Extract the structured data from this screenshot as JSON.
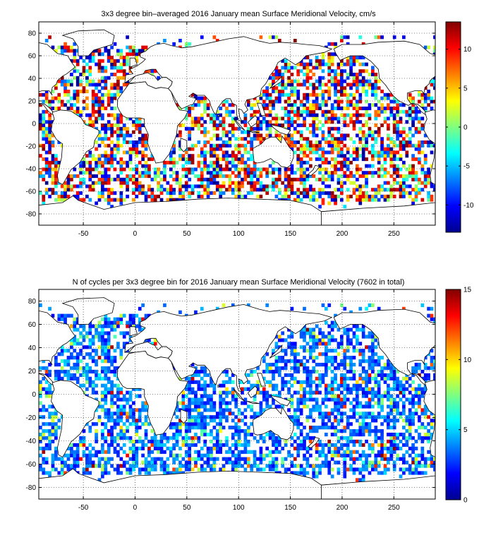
{
  "chart_data": [
    {
      "type": "heatmap",
      "title": "3x3 degree bin–averaged 2016 January mean Surface Meridional Velocity, cm/s",
      "xlabel": "",
      "ylabel": "",
      "xlim": [
        -93,
        290
      ],
      "ylim": [
        -90,
        90
      ],
      "x_ticks": [
        -50,
        0,
        50,
        100,
        150,
        200,
        250
      ],
      "y_ticks": [
        80,
        60,
        40,
        20,
        0,
        -20,
        -40,
        -60,
        -80
      ],
      "grid": "dotted",
      "bin_size_deg": 3,
      "colorbar": {
        "range": [
          -13.5,
          13.5
        ],
        "ticks": [
          10,
          5,
          0,
          -5,
          -10
        ],
        "colormap": "jet"
      }
    },
    {
      "type": "heatmap",
      "title": "N of cycles per 3x3 degree bin for 2016 January mean Surface Meridional Velocity (7602 in total)",
      "xlabel": "",
      "ylabel": "",
      "xlim": [
        -93,
        290
      ],
      "ylim": [
        -90,
        90
      ],
      "x_ticks": [
        -50,
        0,
        50,
        100,
        150,
        200,
        250
      ],
      "y_ticks": [
        80,
        60,
        40,
        20,
        0,
        -20,
        -40,
        -60,
        -80
      ],
      "grid": "dotted",
      "bin_size_deg": 3,
      "colorbar": {
        "range": [
          0,
          15
        ],
        "ticks": [
          15,
          10,
          5,
          0
        ],
        "colormap": "jet"
      }
    }
  ]
}
